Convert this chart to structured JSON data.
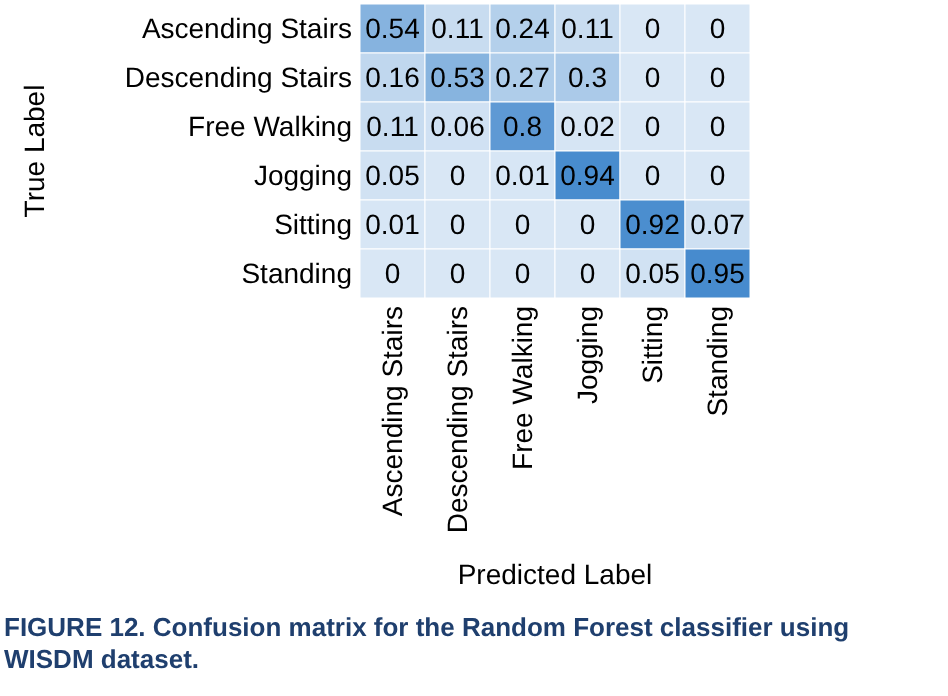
{
  "chart_data": {
    "type": "heatmap",
    "xlabel": "Predicted Label",
    "ylabel": "True Label",
    "categories": [
      "Ascending Stairs",
      "Descending Stairs",
      "Free Walking",
      "Jogging",
      "Sitting",
      "Standing"
    ],
    "y_categories": [
      "Ascending Stairs",
      "Descending Stairs",
      "Free Walking",
      "Jogging",
      "Sitting",
      "Standing"
    ],
    "cells": [
      [
        0.54,
        0.11,
        0.24,
        0.11,
        0,
        0
      ],
      [
        0.16,
        0.53,
        0.27,
        0.3,
        0,
        0
      ],
      [
        0.11,
        0.06,
        0.8,
        0.02,
        0,
        0
      ],
      [
        0.05,
        0,
        0.01,
        0.94,
        0,
        0
      ],
      [
        0.01,
        0,
        0,
        0,
        0.92,
        0.07
      ],
      [
        0,
        0,
        0,
        0,
        0.05,
        0.95
      ]
    ],
    "data_labels": true,
    "annotations": [
      "FIGURE 12. Confusion matrix for the Random Forest classifier using WISDM dataset."
    ]
  }
}
